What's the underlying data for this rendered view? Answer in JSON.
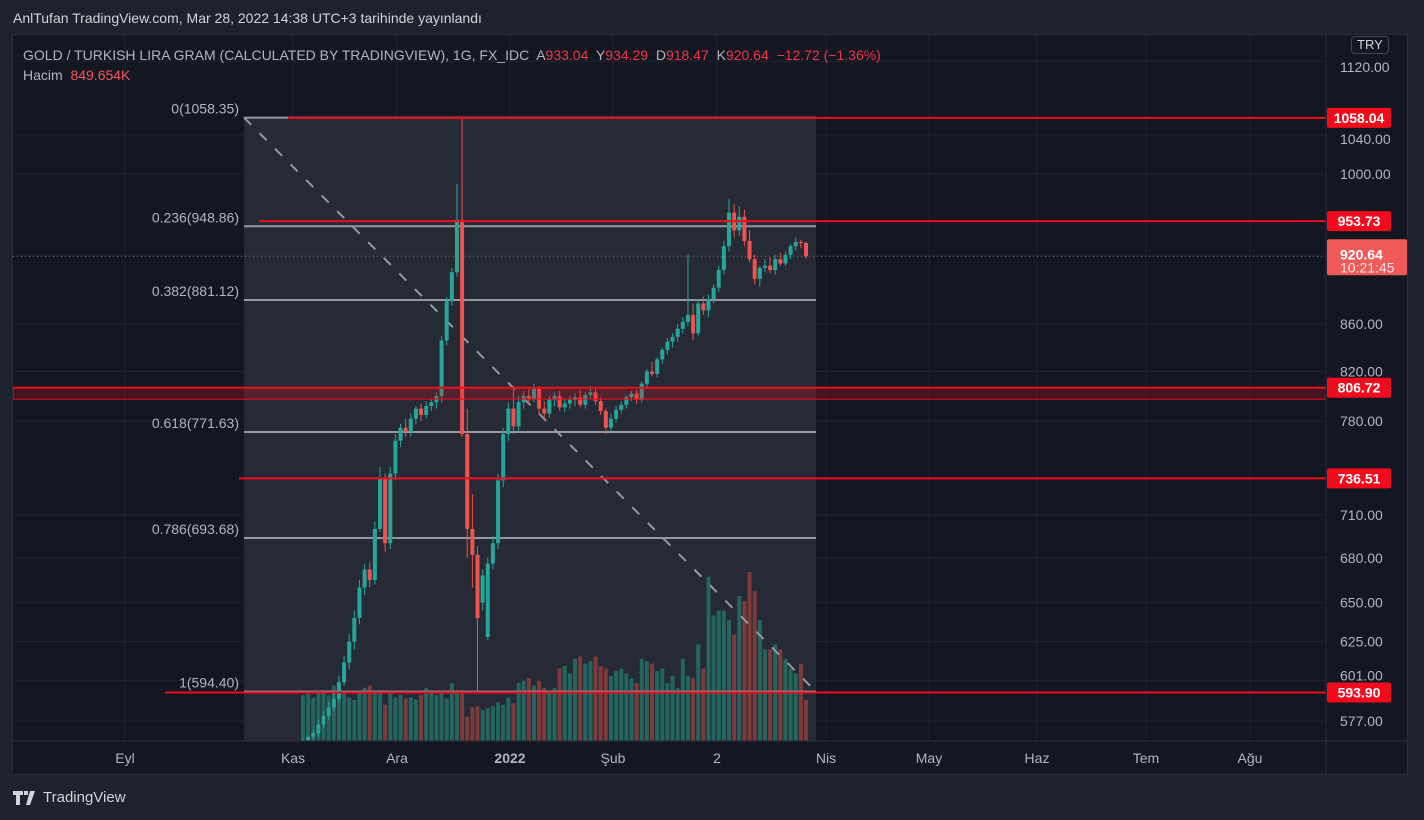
{
  "published": "AnlTufan TradingView.com, Mar 28, 2022 14:38 UTC+3 tarihinde yayınlandı",
  "legend": {
    "symbol": "GOLD / TURKISH LIRA GRAM (CALCULATED BY TRADINGVIEW), 1G, FX_IDC",
    "open_label": "A",
    "open": "933.04",
    "high_label": "Y",
    "high": "934.29",
    "low_label": "D",
    "low": "918.47",
    "close_label": "K",
    "close": "920.64",
    "change": "−12.72 (−1.36%)",
    "volume_label": "Hacim",
    "volume": "849.654K"
  },
  "currency_button": "TRY",
  "brand": "TradingView",
  "colors": {
    "up": "#26a69a",
    "down": "#ef5350",
    "line": "#f20b1c",
    "fib": "#9598a1",
    "bg": "#131722"
  },
  "chart_data": {
    "type": "candlestick",
    "scale": "log",
    "y_ticks": [
      "1120.00",
      "1040.00",
      "1000.00",
      "860.00",
      "820.00",
      "780.00",
      "710.00",
      "680.00",
      "650.00",
      "625.00",
      "601.00",
      "577.00"
    ],
    "x_ticks": [
      "Eyl",
      "Kas",
      "Ara",
      "2022",
      "Şub",
      "2",
      "Nis",
      "May",
      "Haz",
      "Tem",
      "Ağu"
    ],
    "current_price": {
      "value": "920.64",
      "countdown": "10:21:45"
    },
    "horizontal_lines": [
      {
        "label": "1058.04",
        "value": 1058.04
      },
      {
        "label": "953.73",
        "value": 953.73
      },
      {
        "label": "806.72",
        "value": 806.72,
        "zone_low": 797.5
      },
      {
        "label": "736.51",
        "value": 736.51
      },
      {
        "label": "593.90",
        "value": 593.9
      }
    ],
    "fibonacci": [
      {
        "label": "0(1058.35)",
        "value": 1058.35
      },
      {
        "label": "0.236(948.86)",
        "value": 948.86
      },
      {
        "label": "0.382(881.12)",
        "value": 881.12
      },
      {
        "label": "0.618(771.63)",
        "value": 771.63
      },
      {
        "label": "0.786(693.68)",
        "value": 693.68
      },
      {
        "label": "1(594.40)",
        "value": 594.4
      }
    ],
    "candles_ohlc": [
      [
        564,
        567,
        562,
        566
      ],
      [
        566,
        569,
        564,
        568
      ],
      [
        568,
        572,
        566,
        570
      ],
      [
        570,
        578,
        568,
        575
      ],
      [
        575,
        583,
        573,
        580
      ],
      [
        580,
        588,
        578,
        585
      ],
      [
        585,
        594,
        583,
        590
      ],
      [
        590,
        604,
        588,
        600
      ],
      [
        600,
        616,
        598,
        612
      ],
      [
        612,
        630,
        608,
        625
      ],
      [
        625,
        645,
        620,
        640
      ],
      [
        640,
        665,
        636,
        660
      ],
      [
        660,
        676,
        655,
        672
      ],
      [
        672,
        677,
        660,
        665
      ],
      [
        665,
        705,
        662,
        700
      ],
      [
        700,
        745,
        698,
        736
      ],
      [
        736,
        740,
        684,
        690
      ],
      [
        690,
        745,
        686,
        740
      ],
      [
        740,
        770,
        735,
        765
      ],
      [
        765,
        778,
        760,
        775
      ],
      [
        775,
        782,
        768,
        772
      ],
      [
        772,
        786,
        768,
        782
      ],
      [
        782,
        792,
        778,
        790
      ],
      [
        790,
        794,
        780,
        785
      ],
      [
        785,
        796,
        782,
        792
      ],
      [
        792,
        798,
        788,
        795
      ],
      [
        795,
        803,
        790,
        800
      ],
      [
        800,
        850,
        795,
        846
      ],
      [
        846,
        884,
        842,
        880
      ],
      [
        880,
        910,
        876,
        906
      ],
      [
        906,
        990,
        902,
        955
      ],
      [
        955,
        1058,
        768,
        770
      ],
      [
        770,
        790,
        680,
        700
      ],
      [
        700,
        725,
        660,
        682
      ],
      [
        682,
        688,
        594,
        640
      ],
      [
        650,
        672,
        645,
        668
      ],
      [
        628,
        680,
        626,
        676
      ],
      [
        676,
        695,
        672,
        690
      ],
      [
        690,
        740,
        686,
        735
      ],
      [
        735,
        775,
        730,
        770
      ],
      [
        770,
        795,
        765,
        790
      ],
      [
        790,
        808,
        770,
        776
      ],
      [
        776,
        800,
        772,
        795
      ],
      [
        795,
        804,
        790,
        800
      ],
      [
        800,
        806,
        794,
        798
      ],
      [
        798,
        810,
        795,
        806
      ],
      [
        806,
        808,
        785,
        790
      ],
      [
        790,
        796,
        782,
        786
      ],
      [
        786,
        800,
        783,
        797
      ],
      [
        797,
        803,
        792,
        800
      ],
      [
        800,
        804,
        788,
        791
      ],
      [
        791,
        798,
        787,
        794
      ],
      [
        794,
        800,
        790,
        797
      ],
      [
        797,
        802,
        792,
        799
      ],
      [
        799,
        805,
        791,
        793
      ],
      [
        793,
        803,
        790,
        801
      ],
      [
        801,
        808,
        798,
        803
      ],
      [
        803,
        806,
        793,
        796
      ],
      [
        796,
        799,
        785,
        788
      ],
      [
        788,
        790,
        770,
        775
      ],
      [
        775,
        786,
        772,
        782
      ],
      [
        782,
        792,
        779,
        789
      ],
      [
        789,
        796,
        786,
        793
      ],
      [
        793,
        801,
        790,
        799
      ],
      [
        799,
        804,
        796,
        802
      ],
      [
        802,
        805,
        794,
        797
      ],
      [
        797,
        812,
        795,
        810
      ],
      [
        810,
        822,
        806,
        820
      ],
      [
        820,
        828,
        816,
        818
      ],
      [
        818,
        832,
        815,
        830
      ],
      [
        830,
        840,
        826,
        838
      ],
      [
        838,
        848,
        834,
        845
      ],
      [
        845,
        852,
        840,
        849
      ],
      [
        849,
        860,
        845,
        856
      ],
      [
        856,
        866,
        852,
        862
      ],
      [
        862,
        922,
        858,
        868
      ],
      [
        868,
        878,
        846,
        852
      ],
      [
        852,
        882,
        850,
        878
      ],
      [
        878,
        884,
        868,
        872
      ],
      [
        872,
        886,
        866,
        882
      ],
      [
        882,
        895,
        878,
        892
      ],
      [
        892,
        912,
        888,
        908
      ],
      [
        908,
        935,
        904,
        930
      ],
      [
        930,
        975,
        925,
        962
      ],
      [
        962,
        970,
        938,
        945
      ],
      [
        945,
        968,
        940,
        958
      ],
      [
        958,
        965,
        930,
        935
      ],
      [
        935,
        945,
        915,
        918
      ],
      [
        918,
        922,
        895,
        900
      ],
      [
        900,
        912,
        893,
        910
      ],
      [
        910,
        918,
        906,
        912
      ],
      [
        912,
        920,
        905,
        908
      ],
      [
        908,
        922,
        904,
        918
      ],
      [
        918,
        924,
        912,
        914
      ],
      [
        914,
        925,
        912,
        922
      ],
      [
        922,
        932,
        918,
        930
      ],
      [
        930,
        938,
        926,
        934
      ],
      [
        934,
        936,
        928,
        933
      ],
      [
        933,
        934.29,
        918.47,
        920.64
      ]
    ],
    "volume_k": [
      950,
      980,
      900,
      1000,
      1050,
      950,
      1150,
      1000,
      1000,
      900,
      850,
      1000,
      1100,
      1150,
      1000,
      1050,
      750,
      1000,
      900,
      950,
      880,
      900,
      860,
      950,
      1100,
      1050,
      950,
      1000,
      880,
      1200,
      1000,
      1050,
      500,
      700,
      720,
      640,
      680,
      720,
      800,
      750,
      900,
      780,
      1200,
      1250,
      1300,
      1150,
      1250,
      1100,
      1000,
      1100,
      1500,
      1550,
      1400,
      1700,
      1750,
      1600,
      1650,
      1750,
      1550,
      1500,
      1350,
      1450,
      1500,
      1400,
      1300,
      1200,
      1700,
      1650,
      1600,
      1450,
      1500,
      1200,
      1350,
      1100,
      1700,
      1350,
      1300,
      2000,
      1500,
      3400,
      2600,
      2700,
      2700,
      2500,
      2200,
      3000,
      2900,
      3500,
      3100,
      2500,
      1900,
      1900,
      2000,
      1900,
      1700,
      1500,
      1400,
      1600,
      850
    ]
  }
}
